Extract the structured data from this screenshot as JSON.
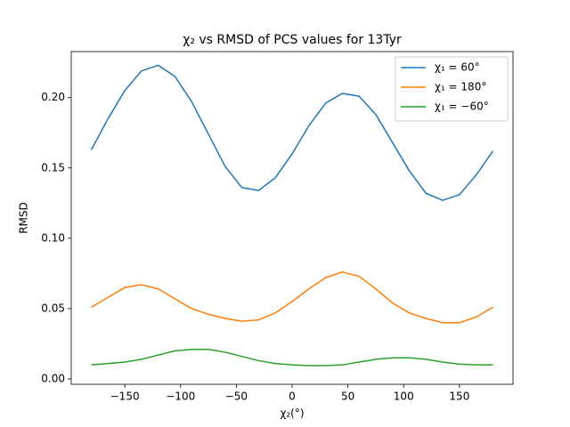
{
  "chart_data": {
    "type": "line",
    "title": "χ₂ vs RMSD of PCS values for 13Tyr",
    "xlabel": "χ₂(°)",
    "ylabel": "RMSD",
    "x": [
      -180,
      -165,
      -150,
      -135,
      -120,
      -105,
      -90,
      -75,
      -60,
      -45,
      -30,
      -15,
      0,
      15,
      30,
      45,
      60,
      75,
      90,
      105,
      120,
      135,
      150,
      165,
      180
    ],
    "series": [
      {
        "name": "χ₁ = 60°",
        "color": "#1f77b4",
        "values": [
          0.163,
          0.185,
          0.205,
          0.219,
          0.223,
          0.215,
          0.197,
          0.174,
          0.151,
          0.136,
          0.134,
          0.143,
          0.16,
          0.18,
          0.196,
          0.203,
          0.201,
          0.188,
          0.168,
          0.148,
          0.132,
          0.127,
          0.131,
          0.145,
          0.162
        ]
      },
      {
        "name": "χ₁ = 180°",
        "color": "#ff7f0e",
        "values": [
          0.051,
          0.058,
          0.065,
          0.067,
          0.064,
          0.057,
          0.05,
          0.046,
          0.043,
          0.041,
          0.042,
          0.047,
          0.055,
          0.064,
          0.072,
          0.076,
          0.073,
          0.064,
          0.054,
          0.047,
          0.043,
          0.04,
          0.04,
          0.044,
          0.051
        ]
      },
      {
        "name": "χ₁ = −60°",
        "color": "#2ca02c",
        "values": [
          0.01,
          0.011,
          0.012,
          0.014,
          0.017,
          0.02,
          0.021,
          0.021,
          0.019,
          0.016,
          0.013,
          0.011,
          0.01,
          0.0095,
          0.0095,
          0.01,
          0.012,
          0.014,
          0.015,
          0.015,
          0.014,
          0.012,
          0.0105,
          0.01,
          0.01
        ]
      }
    ],
    "xlim": [
      -198,
      198
    ],
    "ylim": [
      -0.0038,
      0.2327
    ],
    "xticks": [
      {
        "value": -150,
        "label": "−150"
      },
      {
        "value": -100,
        "label": "−100"
      },
      {
        "value": -50,
        "label": "−50"
      },
      0,
      50,
      100,
      150
    ],
    "yticks": [
      {
        "value": 0,
        "label": "0.00"
      },
      0.05,
      {
        "value": 0.1,
        "label": "0.10"
      },
      0.15,
      {
        "value": 0.2,
        "label": "0.20"
      }
    ],
    "grid": false,
    "legend": "upper right"
  }
}
